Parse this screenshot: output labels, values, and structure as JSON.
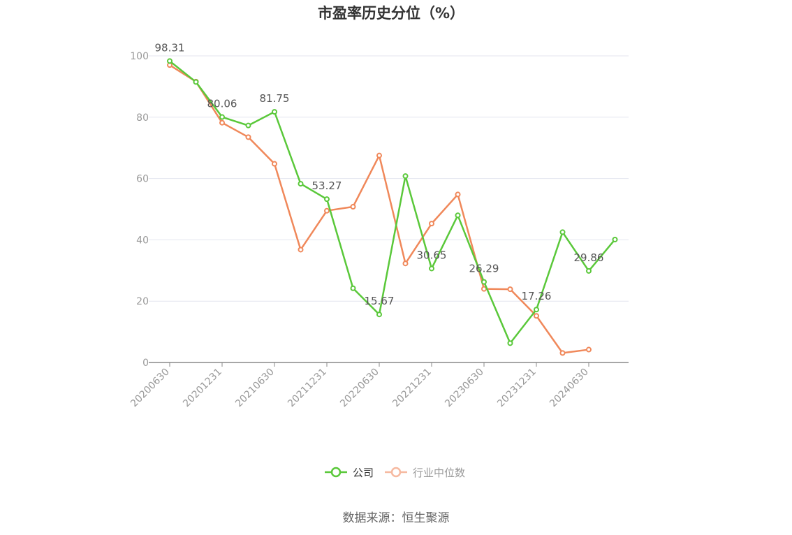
{
  "chart_data": {
    "type": "line",
    "title": "市盈率历史分位（%）",
    "xlabel": "",
    "ylabel": "",
    "ylim": [
      0,
      100
    ],
    "yticks": [
      0,
      20,
      40,
      60,
      80,
      100
    ],
    "grid": true,
    "legend_position": "bottom",
    "categories": [
      "20200630",
      "20200930",
      "20201231",
      "20210331",
      "20210630",
      "20210930",
      "20211231",
      "20220331",
      "20220630",
      "20220930",
      "20221231",
      "20230331",
      "20230630",
      "20230930",
      "20231231",
      "20240331",
      "20240630",
      "20240930"
    ],
    "x_tick_labels": [
      "20200630",
      "20201231",
      "20210630",
      "20211231",
      "20220630",
      "20221231",
      "20230630",
      "20231231",
      "20240630"
    ],
    "series": [
      {
        "name": "公司",
        "color": "#5ac83a",
        "values": [
          98.31,
          91.5,
          80.06,
          77.3,
          81.75,
          58.3,
          53.27,
          24.2,
          15.67,
          60.8,
          30.65,
          48.0,
          26.29,
          6.3,
          17.26,
          42.5,
          29.86,
          40.1
        ],
        "labeled_points": [
          0,
          2,
          4,
          6,
          8,
          10,
          12,
          14,
          16
        ],
        "labels": [
          "98.31",
          "80.06",
          "81.75",
          "53.27",
          "15.67",
          "30.65",
          "26.29",
          "17.26",
          "29.86"
        ]
      },
      {
        "name": "行业中位数",
        "color": "#f0885a",
        "values": [
          97.0,
          91.6,
          78.2,
          73.5,
          64.8,
          36.8,
          49.5,
          50.8,
          67.5,
          32.3,
          45.3,
          54.8,
          24.0,
          23.9,
          15.2,
          3.1,
          4.2,
          null
        ]
      }
    ]
  },
  "source_text": "数据来源：恒生聚源"
}
